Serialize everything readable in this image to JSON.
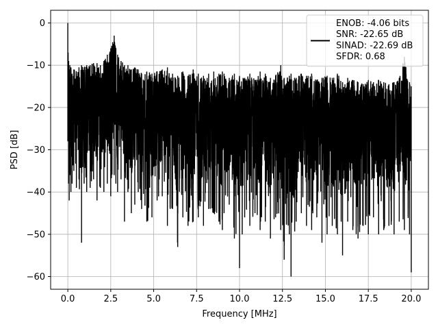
{
  "chart_data": {
    "type": "line",
    "xlabel": "Frequency [MHz]",
    "ylabel": "PSD [dB]",
    "xlim": [
      -1.0,
      21.0
    ],
    "ylim": [
      -63.0,
      3.0
    ],
    "xticks": [
      0.0,
      2.5,
      5.0,
      7.5,
      10.0,
      12.5,
      15.0,
      17.5,
      20.0
    ],
    "xtick_labels": [
      "0.0",
      "2.5",
      "5.0",
      "7.5",
      "10.0",
      "12.5",
      "15.0",
      "17.5",
      "20.0"
    ],
    "yticks": [
      0,
      -10,
      -20,
      -30,
      -40,
      -50,
      -60
    ],
    "ytick_labels": [
      "0",
      "−10",
      "−20",
      "−30",
      "−40",
      "−50",
      "−60"
    ],
    "grid": true,
    "legend_position": "upper-right",
    "line_color": "#000000",
    "series": [
      {
        "legend_lines": [
          "ENOB: -4.06 bits",
          "SNR: -22.65 dB",
          "SINAD: -22.69 dB",
          "SFDR: 0.68"
        ],
        "description": "dense noisy spectrum, approx. 0 to 20 MHz",
        "x": [
          0.0,
          0.02,
          0.05,
          0.08,
          0.12,
          0.18,
          0.25,
          0.35,
          0.5,
          0.65,
          0.8,
          0.95,
          1.1,
          1.3,
          1.5,
          1.7,
          1.9,
          2.1,
          2.3,
          2.5,
          2.7,
          2.8,
          2.9,
          3.1,
          3.3,
          3.5,
          3.7,
          3.9,
          4.1,
          4.3,
          4.6,
          4.9,
          5.2,
          5.5,
          5.8,
          6.1,
          6.4,
          6.7,
          7.0,
          7.3,
          7.6,
          7.9,
          8.2,
          8.5,
          8.8,
          9.0,
          9.1,
          9.4,
          9.7,
          10.0,
          10.3,
          10.6,
          10.9,
          11.2,
          11.5,
          11.8,
          12.1,
          12.4,
          12.6,
          12.9,
          13.0,
          13.3,
          13.6,
          13.9,
          14.2,
          14.5,
          14.8,
          15.1,
          15.4,
          15.7,
          16.0,
          16.3,
          16.6,
          16.9,
          17.2,
          17.5,
          17.8,
          18.1,
          18.4,
          18.7,
          19.0,
          19.3,
          19.6,
          19.9,
          20.0
        ],
        "upper": [
          0.0,
          -7.0,
          -9.0,
          -11.0,
          -10.0,
          -10.5,
          -12.0,
          -11.0,
          -11.5,
          -10.5,
          -10.0,
          -10.5,
          -10.0,
          -10.0,
          -9.5,
          -9.5,
          -10.0,
          -9.0,
          -7.5,
          -6.0,
          -3.0,
          -6.0,
          -7.5,
          -9.0,
          -10.0,
          -10.0,
          -11.0,
          -10.5,
          -11.0,
          -12.0,
          -11.5,
          -12.0,
          -11.5,
          -11.0,
          -10.5,
          -12.0,
          -12.5,
          -11.5,
          -12.5,
          -11.0,
          -12.0,
          -12.5,
          -12.0,
          -11.5,
          -12.0,
          -11.5,
          -12.0,
          -13.0,
          -12.0,
          -12.5,
          -13.0,
          -12.0,
          -13.5,
          -11.5,
          -12.0,
          -13.0,
          -12.5,
          -10.0,
          -13.0,
          -12.5,
          -12.0,
          -13.0,
          -12.0,
          -12.5,
          -12.0,
          -13.5,
          -13.0,
          -12.5,
          -13.0,
          -12.0,
          -14.0,
          -13.0,
          -13.5,
          -14.0,
          -14.5,
          -13.5,
          -14.0,
          -13.5,
          -14.0,
          -14.5,
          -14.0,
          -13.0,
          -8.0,
          -14.0,
          -15.0
        ],
        "lower": [
          -28.0,
          -15.0,
          -38.0,
          -42.0,
          -36.0,
          -40.0,
          -38.0,
          -35.0,
          -39.0,
          -37.0,
          -52.0,
          -38.0,
          -40.0,
          -39.0,
          -37.0,
          -42.0,
          -39.0,
          -40.0,
          -38.0,
          -41.0,
          -36.0,
          -38.0,
          -40.0,
          -37.0,
          -47.0,
          -40.0,
          -45.0,
          -43.0,
          -40.0,
          -44.0,
          -47.0,
          -46.0,
          -42.0,
          -41.0,
          -48.0,
          -44.0,
          -53.0,
          -46.0,
          -48.0,
          -47.0,
          -46.0,
          -48.0,
          -44.0,
          -45.0,
          -47.0,
          -49.0,
          -45.0,
          -43.0,
          -51.0,
          -58.0,
          -46.0,
          -48.0,
          -45.0,
          -49.0,
          -47.0,
          -51.0,
          -46.0,
          -49.0,
          -56.0,
          -50.0,
          -60.0,
          -47.0,
          -45.0,
          -48.0,
          -49.0,
          -46.0,
          -52.0,
          -50.0,
          -48.0,
          -50.0,
          -55.0,
          -47.0,
          -49.0,
          -51.0,
          -48.0,
          -50.0,
          -46.0,
          -50.0,
          -49.0,
          -48.0,
          -50.0,
          -47.0,
          -49.0,
          -50.0,
          -59.0
        ]
      }
    ]
  }
}
